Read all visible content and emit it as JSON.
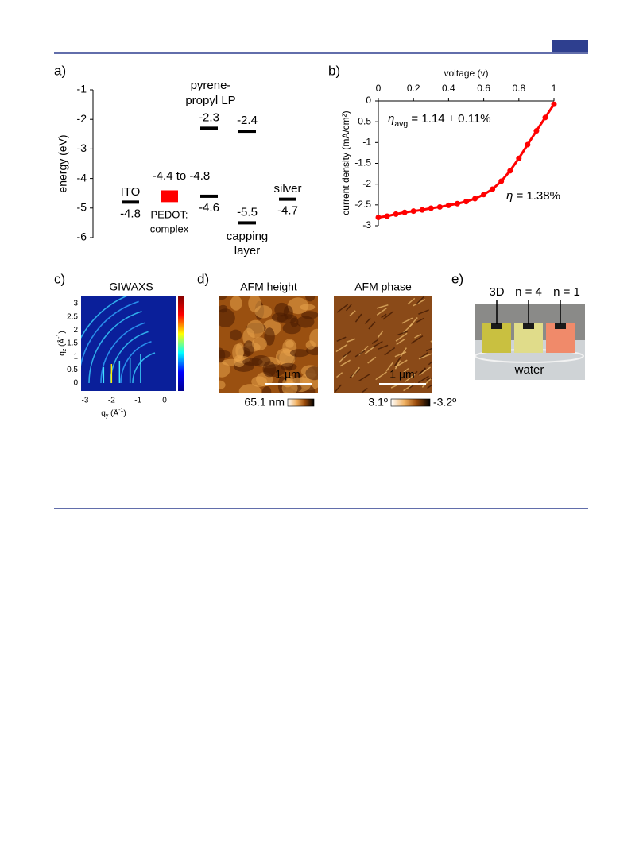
{
  "chart_data": [
    {
      "type": "energy-level",
      "panel": "a)",
      "ylabel": "energy (eV)",
      "ylim": [
        -6,
        -1
      ],
      "yticks": [
        -6,
        -5,
        -4,
        -3,
        -2,
        -1
      ],
      "series": [
        {
          "name": [
            "ITO"
          ],
          "values": [
            -4.8
          ]
        },
        {
          "name": [
            "PEDOT:",
            "complex"
          ],
          "color": "#ff0000",
          "values": [
            -4.4,
            -4.8
          ],
          "range_label": "-4.4 to -4.8"
        },
        {
          "name": [
            "pyrene-",
            "propyl LP"
          ],
          "values": [
            -2.3,
            -4.6
          ]
        },
        {
          "name": [
            "capping",
            "layer"
          ],
          "values": [
            -2.4,
            -5.5
          ]
        },
        {
          "name": [
            "silver"
          ],
          "values": [
            -4.7
          ]
        }
      ]
    },
    {
      "type": "scatter",
      "panel": "b)",
      "xlabel": "voltage (v)",
      "ylabel": "current density (mA/cm²)",
      "color": "#ff0000",
      "x": [
        0,
        0.05,
        0.1,
        0.15,
        0.2,
        0.25,
        0.3,
        0.35,
        0.4,
        0.45,
        0.5,
        0.55,
        0.6,
        0.65,
        0.7,
        0.75,
        0.8,
        0.85,
        0.9,
        0.95,
        1
      ],
      "values": [
        -2.8,
        -2.77,
        -2.72,
        -2.68,
        -2.65,
        -2.62,
        -2.58,
        -2.55,
        -2.51,
        -2.47,
        -2.42,
        -2.35,
        -2.25,
        -2.12,
        -1.93,
        -1.68,
        -1.38,
        -1.05,
        -0.72,
        -0.4,
        -0.08
      ],
      "xlim": [
        0,
        1
      ],
      "xticks": [
        0,
        0.2,
        0.4,
        0.6,
        0.8,
        1
      ],
      "ylim": [
        -3,
        0
      ],
      "yticks": [
        -3,
        -2.5,
        -2,
        -1.5,
        -1,
        -0.5,
        0
      ],
      "annotations": [
        {
          "parts": [
            "η",
            "avg",
            " = 1.14 ± 0.11%"
          ]
        },
        {
          "parts": [
            "η",
            " = 1.38%"
          ]
        }
      ]
    },
    {
      "type": "heatmap",
      "panel": "c)",
      "title": "GIWAXS",
      "xlabel": [
        "q",
        "y",
        " (Å",
        "-1",
        ")"
      ],
      "ylabel": [
        "q",
        "z",
        " (Å",
        "-1",
        ")"
      ],
      "xlim": [
        -3.15,
        0.45
      ],
      "xticks": [
        -3,
        -2,
        -1,
        0
      ],
      "ylim": [
        -0.3,
        3.3
      ],
      "yticks": [
        0,
        0.5,
        1,
        1.5,
        2,
        2.5,
        3
      ]
    }
  ],
  "panel_d": {
    "label": "d)",
    "images": [
      {
        "title": "AFM height",
        "scale_bar": "1 µm",
        "scale_left": "65.1 nm"
      },
      {
        "title": "AFM phase",
        "scale_bar": "1 µm",
        "scale_left": "3.1º",
        "scale_right": "-3.2º"
      }
    ]
  },
  "panel_e": {
    "label": "e)",
    "samples": [
      "3D",
      "n = 4",
      "n = 1"
    ],
    "caption": "water"
  }
}
